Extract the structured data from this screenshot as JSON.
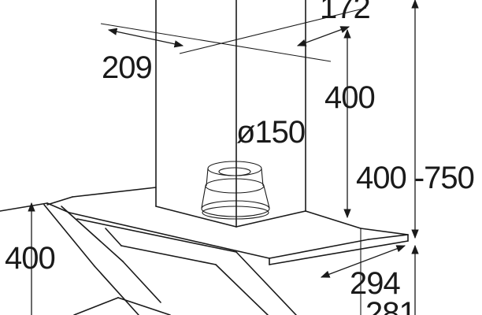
{
  "dimensions": {
    "width_top": "172",
    "depth_top": "209",
    "chimney_height": "400",
    "duct_diameter": "ø150",
    "adjustable_height": "400 -750",
    "hood_front_height": "400",
    "hood_depth": "294",
    "hood_bottom": "281"
  },
  "colors": {
    "stroke": "#1a1a1a",
    "background": "#ffffff"
  }
}
